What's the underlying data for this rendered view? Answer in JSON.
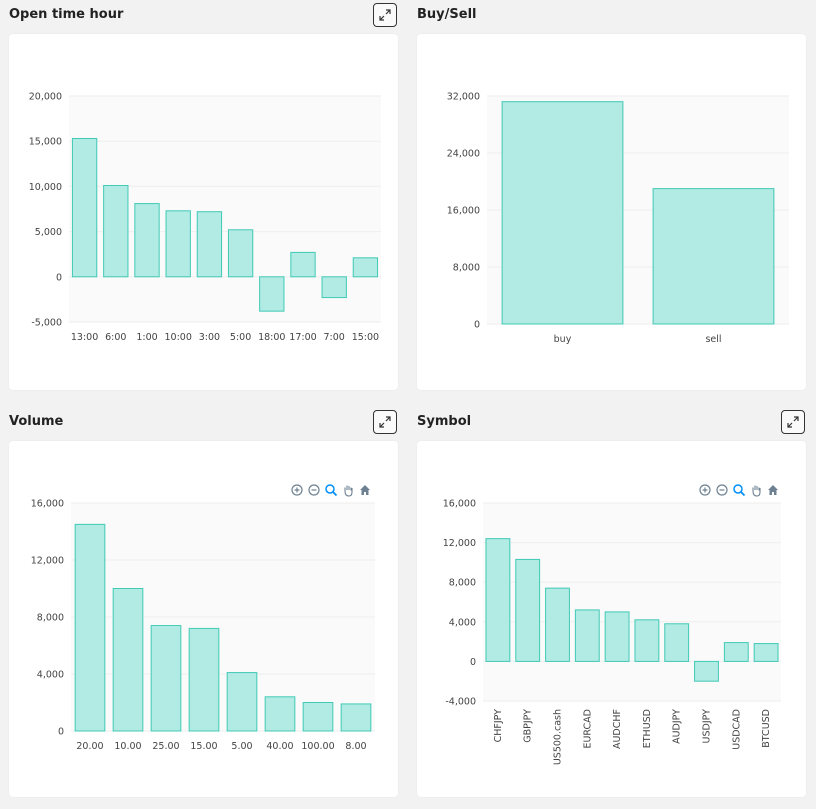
{
  "panels": {
    "open_time": {
      "title": "Open time hour",
      "expand_label": "expand"
    },
    "buysell": {
      "title": "Buy/Sell"
    },
    "volume": {
      "title": "Volume",
      "expand_label": "expand"
    },
    "symbol": {
      "title": "Symbol",
      "expand_label": "expand"
    }
  },
  "colors": {
    "bar_fill": "#b2ebe4",
    "bar_stroke": "#40c9b5",
    "grid": "#eeeeee",
    "plot_bg": "#fafafa"
  },
  "toolbar_icons": [
    "zoom-in-icon",
    "zoom-out-icon",
    "zoom-select-icon",
    "pan-hand-icon",
    "home-reset-icon"
  ],
  "chart_data": [
    {
      "id": "open_time",
      "type": "bar",
      "categories": [
        "13:00",
        "6:00",
        "1:00",
        "10:00",
        "3:00",
        "5:00",
        "18:00",
        "17:00",
        "7:00",
        "15:00"
      ],
      "values": [
        15300,
        10100,
        8100,
        7300,
        7200,
        5200,
        -3800,
        2700,
        -2300,
        2100
      ],
      "yticks": [
        -5000,
        0,
        5000,
        10000,
        15000,
        20000
      ],
      "ytick_labels": [
        "-5,000",
        "0",
        "5,000",
        "10,000",
        "15,000",
        "20,000"
      ],
      "ylim": [
        -5000,
        20000
      ],
      "grid": true
    },
    {
      "id": "buysell",
      "type": "bar",
      "categories": [
        "buy",
        "sell"
      ],
      "values": [
        31200,
        19000
      ],
      "yticks": [
        0,
        8000,
        16000,
        24000,
        32000
      ],
      "ytick_labels": [
        "0",
        "8,000",
        "16,000",
        "24,000",
        "32,000"
      ],
      "ylim": [
        0,
        32000
      ],
      "grid": true
    },
    {
      "id": "volume",
      "type": "bar",
      "categories": [
        "20.00",
        "10.00",
        "25.00",
        "15.00",
        "5.00",
        "40.00",
        "100.00",
        "8.00"
      ],
      "values": [
        14500,
        10000,
        7400,
        7200,
        4100,
        2400,
        2000,
        1900
      ],
      "yticks": [
        0,
        4000,
        8000,
        12000,
        16000
      ],
      "ytick_labels": [
        "0",
        "4,000",
        "8,000",
        "12,000",
        "16,000"
      ],
      "ylim": [
        0,
        16000
      ],
      "grid": true
    },
    {
      "id": "symbol",
      "type": "bar",
      "categories": [
        "CHFJPY",
        "GBPJPY",
        "US500.cash",
        "EURCAD",
        "AUDCHF",
        "ETHUSD",
        "AUDJPY",
        "USDJPY",
        "USDCAD",
        "BTCUSD"
      ],
      "values": [
        12400,
        10300,
        7400,
        5200,
        5000,
        4200,
        3800,
        -2000,
        1900,
        1800
      ],
      "yticks": [
        -4000,
        0,
        4000,
        8000,
        12000,
        16000
      ],
      "ytick_labels": [
        "-4,000",
        "0",
        "4,000",
        "8,000",
        "12,000",
        "16,000"
      ],
      "ylim": [
        -4000,
        16000
      ],
      "grid": true,
      "rotated_labels": true
    }
  ]
}
